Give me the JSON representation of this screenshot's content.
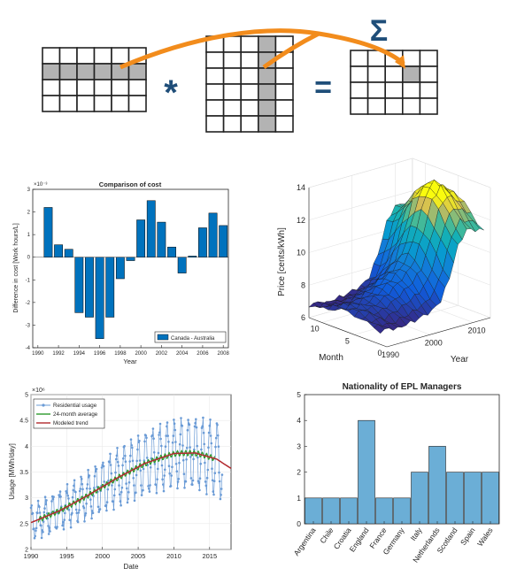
{
  "diagram": {
    "sigma": "Σ",
    "star": "*",
    "equals": "=",
    "colors": {
      "accent": "#F28C1C",
      "symbol": "#1F4E79",
      "highlight": "#B3B3B3"
    }
  },
  "chart_data": [
    {
      "id": "cost",
      "type": "bar",
      "title": "Comparison of cost",
      "xlabel": "Year",
      "ylabel": "Difference in cost [Work hours/L]",
      "exponent": "×10⁻³",
      "ylim": [
        -4,
        3
      ],
      "xlim": [
        1989.5,
        2008.5
      ],
      "x": [
        1991,
        1992,
        1993,
        1994,
        1995,
        1996,
        1997,
        1998,
        1999,
        2000,
        2001,
        2002,
        2003,
        2004,
        2005,
        2006,
        2007,
        2008
      ],
      "values": [
        2.2,
        0.55,
        0.35,
        -2.45,
        -2.65,
        -3.6,
        -2.65,
        -0.95,
        -0.15,
        1.65,
        2.5,
        1.55,
        0.45,
        -0.7,
        0.05,
        1.3,
        1.95,
        1.4
      ],
      "yticks": [
        -4,
        -3,
        -2,
        -1,
        0,
        1,
        2,
        3
      ],
      "xticks": [
        1990,
        1992,
        1994,
        1996,
        1998,
        2000,
        2002,
        2004,
        2006,
        2008
      ],
      "legend": [
        "Canada - Australia"
      ],
      "legend_position": "bottom-right",
      "color": "#0072BD"
    },
    {
      "id": "price",
      "type": "surface",
      "zlabel": "Price [cents/kWh]",
      "xlabel": "Year",
      "ylabel": "Month",
      "zticks": [
        6,
        8,
        10,
        12,
        14
      ],
      "xticks": [
        1990,
        2000,
        2010
      ],
      "yticks": [
        0,
        5,
        10
      ],
      "years": [
        1990,
        1992,
        1994,
        1996,
        1998,
        2000,
        2002,
        2004,
        2006,
        2008,
        2010,
        2012,
        2014
      ],
      "annual_price": [
        7.0,
        7.1,
        7.0,
        7.2,
        7.4,
        7.7,
        8.0,
        8.6,
        10.0,
        11.8,
        12.6,
        12.3,
        12.0
      ],
      "seasonal_amplitude": [
        0.3,
        0.4,
        0.5,
        0.6,
        0.8,
        1.0,
        1.2,
        1.4,
        1.6,
        1.6,
        1.5,
        1.3,
        1.1
      ]
    },
    {
      "id": "usage",
      "type": "line",
      "xlabel": "Date",
      "ylabel": "Usage [MWh/day]",
      "exponent": "×10⁶",
      "ylim": [
        2,
        5
      ],
      "xlim": [
        1990,
        2018
      ],
      "yticks": [
        2,
        2.5,
        3,
        3.5,
        4,
        4.5,
        5
      ],
      "xticks": [
        1990,
        1995,
        2000,
        2005,
        2010,
        2015
      ],
      "legend": [
        "Residential usage",
        "24-month average",
        "Modeled trend"
      ],
      "legend_position": "top-left",
      "colors": [
        "#6A9BD6",
        "#2E9A2E",
        "#B2292E"
      ],
      "trend": {
        "x": [
          1990,
          1994,
          1998,
          2002,
          2006,
          2010,
          2013,
          2016,
          2018
        ],
        "y": [
          2.52,
          2.75,
          3.05,
          3.38,
          3.67,
          3.86,
          3.87,
          3.75,
          3.57
        ]
      },
      "seasonal_amplitude": [
        0.3,
        0.35,
        0.45,
        0.55,
        0.6,
        0.65,
        0.7
      ]
    },
    {
      "id": "epl",
      "type": "bar",
      "title": "Nationality of EPL Managers",
      "categories": [
        "Argentina",
        "Chile",
        "Croatia",
        "England",
        "France",
        "Germany",
        "Italy",
        "Netherlands",
        "Scotland",
        "Spain",
        "Wales"
      ],
      "values": [
        1,
        1,
        1,
        4,
        1,
        1,
        2,
        3,
        2,
        2,
        2
      ],
      "ylim": [
        0,
        5
      ],
      "yticks": [
        0,
        1,
        2,
        3,
        4,
        5
      ],
      "color": "#6BAED6"
    }
  ]
}
